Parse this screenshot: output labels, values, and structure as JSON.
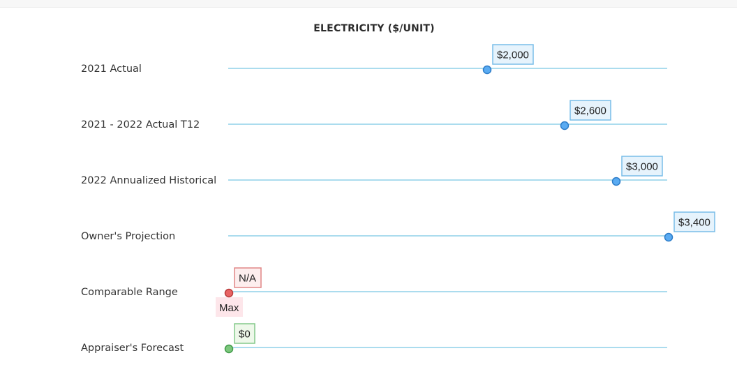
{
  "chart_data": {
    "type": "scatter",
    "title": "ELECTRICITY ($/UNIT)",
    "xlim": [
      0,
      3400
    ],
    "grid": false,
    "colors": {
      "line": "#8fd0e8",
      "blue_fill": "#5aabf2",
      "blue_stroke": "#2c7cc8",
      "blue_label_bg": "#e6f3fc",
      "blue_label_border": "#78bde8",
      "red_fill": "#e86464",
      "red_stroke": "#b83a3a",
      "red_label_bg": "#fdeeee",
      "red_label_border": "#e08585",
      "red_sublabel_bg": "#fde6ea",
      "green_fill": "#7cc77c",
      "green_stroke": "#3f9a48",
      "green_label_bg": "#eef8ea",
      "green_label_border": "#84c98a"
    },
    "rows": [
      {
        "label": "2021 Actual",
        "value": 2000,
        "display": "$2,000",
        "color": "blue"
      },
      {
        "label": "2021 - 2022 Actual T12",
        "value": 2600,
        "display": "$2,600",
        "color": "blue"
      },
      {
        "label": "2022 Annualized Historical",
        "value": 3000,
        "display": "$3,000",
        "color": "blue"
      },
      {
        "label": "Owner's Projection",
        "value": 3400,
        "display": "$3,400",
        "color": "blue"
      },
      {
        "label": "Comparable Range",
        "value": 0,
        "display": "N/A",
        "sublabel": "Max",
        "color": "red"
      },
      {
        "label": "Appraiser's Forecast",
        "value": 0,
        "display": "$0",
        "color": "green"
      }
    ]
  }
}
